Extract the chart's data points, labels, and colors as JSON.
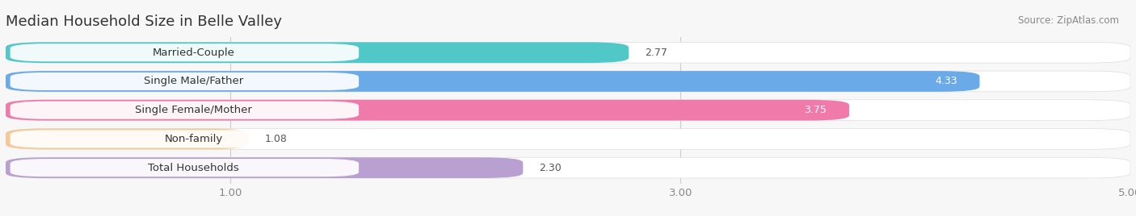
{
  "title": "Median Household Size in Belle Valley",
  "source": "Source: ZipAtlas.com",
  "categories": [
    "Married-Couple",
    "Single Male/Father",
    "Single Female/Mother",
    "Non-family",
    "Total Households"
  ],
  "values": [
    2.77,
    4.33,
    3.75,
    1.08,
    2.3
  ],
  "bar_colors": [
    "#50c8c8",
    "#6aaae8",
    "#f07aaa",
    "#f5c895",
    "#b8a0d0"
  ],
  "background_color": "#f7f7f7",
  "row_bg_color": "#ffffff",
  "xlim_max": 5.0,
  "xlim_start": 0.0,
  "xticks": [
    1.0,
    3.0,
    5.0
  ],
  "title_fontsize": 13,
  "label_fontsize": 9.5,
  "value_fontsize": 9,
  "source_fontsize": 8.5,
  "value_colors": [
    "#333333",
    "#ffffff",
    "#ffffff",
    "#333333",
    "#333333"
  ]
}
